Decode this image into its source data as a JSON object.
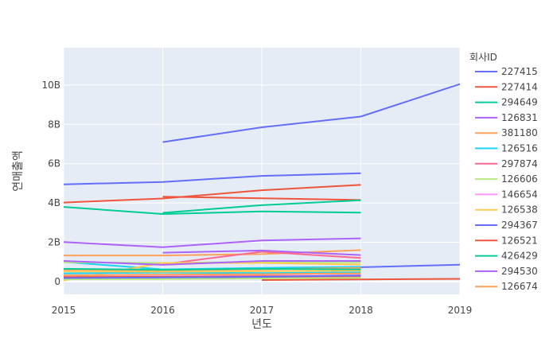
{
  "chart_data": {
    "type": "line",
    "xlabel": "년도",
    "ylabel": "연매출액",
    "legend_title": "회사ID",
    "legend_placement": "right",
    "grid": true,
    "xlim": [
      2015,
      2019
    ],
    "ylim": [
      -650000000,
      11900000000
    ],
    "x_ticks": [
      2015,
      2016,
      2017,
      2018,
      2019
    ],
    "y_ticks": [
      {
        "value": 0,
        "label": "0"
      },
      {
        "value": 2000000000,
        "label": "2B"
      },
      {
        "value": 4000000000,
        "label": "4B"
      },
      {
        "value": 6000000000,
        "label": "6B"
      },
      {
        "value": 8000000000,
        "label": "8B"
      },
      {
        "value": 10000000000,
        "label": "10B"
      }
    ],
    "series": [
      {
        "name": "227415",
        "color": "#636efa",
        "points": [
          [
            2016,
            7100000000
          ],
          [
            2017,
            7850000000
          ],
          [
            2018,
            8400000000
          ],
          [
            2019,
            10050000000
          ]
        ]
      },
      {
        "name": "227414",
        "color": "#ef553b",
        "points": [
          [
            2015,
            4020000000
          ],
          [
            2016,
            4230000000
          ],
          [
            2017,
            4650000000
          ],
          [
            2018,
            4920000000
          ]
        ]
      },
      {
        "name": "294649",
        "color": "#00cc96",
        "points": [
          [
            2015,
            3800000000
          ],
          [
            2016,
            3440000000
          ],
          [
            2017,
            3570000000
          ],
          [
            2018,
            3510000000
          ]
        ]
      },
      {
        "name": "126831",
        "color": "#ab63fa",
        "points": [
          [
            2015,
            2010000000
          ],
          [
            2016,
            1750000000
          ],
          [
            2017,
            2090000000
          ],
          [
            2018,
            2200000000
          ]
        ]
      },
      {
        "name": "381180",
        "color": "#ffa15a",
        "points": [
          [
            2015,
            1330000000
          ],
          [
            2016,
            1330000000
          ],
          [
            2017,
            1400000000
          ],
          [
            2018,
            1600000000
          ]
        ]
      },
      {
        "name": "126516",
        "color": "#19d3f3",
        "points": [
          [
            2015,
            1000000000
          ],
          [
            2016,
            620000000
          ],
          [
            2017,
            700000000
          ],
          [
            2018,
            750000000
          ]
        ]
      },
      {
        "name": "297874",
        "color": "#ff6692",
        "points": [
          [
            2016,
            880000000
          ],
          [
            2017,
            1520000000
          ],
          [
            2018,
            1200000000
          ]
        ]
      },
      {
        "name": "126606",
        "color": "#b6e880",
        "points": [
          [
            2015,
            980000000
          ],
          [
            2016,
            950000000
          ],
          [
            2017,
            1000000000
          ],
          [
            2018,
            980000000
          ]
        ]
      },
      {
        "name": "146654",
        "color": "#ff97ff",
        "points": [
          [
            2015,
            250000000
          ],
          [
            2016,
            300000000
          ],
          [
            2017,
            350000000
          ],
          [
            2018,
            400000000
          ]
        ]
      },
      {
        "name": "126538",
        "color": "#fecb52",
        "points": [
          [
            2015,
            60000000
          ],
          [
            2016,
            950000000
          ],
          [
            2017,
            950000000
          ],
          [
            2018,
            870000000
          ]
        ]
      },
      {
        "name": "294367",
        "color": "#636efa",
        "points": [
          [
            2015,
            4950000000
          ],
          [
            2016,
            5070000000
          ],
          [
            2017,
            5380000000
          ],
          [
            2018,
            5510000000
          ]
        ]
      },
      {
        "name": "126521",
        "color": "#ef553b",
        "points": [
          [
            2016,
            4320000000
          ],
          [
            2017,
            4240000000
          ],
          [
            2018,
            4150000000
          ]
        ]
      },
      {
        "name": "426429",
        "color": "#00cc96",
        "points": [
          [
            2016,
            3500000000
          ],
          [
            2017,
            3890000000
          ],
          [
            2018,
            4140000000
          ]
        ]
      },
      {
        "name": "294530",
        "color": "#ab63fa",
        "points": [
          [
            2016,
            1470000000
          ],
          [
            2017,
            1580000000
          ],
          [
            2018,
            1350000000
          ]
        ]
      },
      {
        "name": "126674",
        "color": "#ffa15a",
        "points": [
          [
            2015,
            600000000
          ],
          [
            2016,
            580000000
          ],
          [
            2017,
            620000000
          ],
          [
            2018,
            700000000
          ]
        ]
      },
      {
        "name": "",
        "color": "#636efa",
        "points": [
          [
            2018,
            730000000
          ],
          [
            2019,
            860000000
          ]
        ]
      },
      {
        "name": "",
        "color": "#ef553b",
        "points": [
          [
            2017,
            80000000
          ],
          [
            2018,
            110000000
          ],
          [
            2019,
            140000000
          ]
        ]
      },
      {
        "name": "",
        "color": "#ab63fa",
        "points": [
          [
            2015,
            1050000000
          ],
          [
            2016,
            850000000
          ],
          [
            2017,
            1050000000
          ],
          [
            2018,
            1050000000
          ]
        ]
      },
      {
        "name": "",
        "color": "#19d3f3",
        "points": [
          [
            2015,
            420000000
          ],
          [
            2016,
            460000000
          ],
          [
            2017,
            430000000
          ],
          [
            2018,
            470000000
          ]
        ]
      },
      {
        "name": "",
        "color": "#ff6692",
        "points": [
          [
            2015,
            150000000
          ],
          [
            2016,
            200000000
          ],
          [
            2017,
            230000000
          ],
          [
            2018,
            260000000
          ]
        ]
      },
      {
        "name": "",
        "color": "#b6e880",
        "points": [
          [
            2015,
            120000000
          ],
          [
            2016,
            130000000
          ],
          [
            2017,
            160000000
          ],
          [
            2018,
            190000000
          ]
        ]
      },
      {
        "name": "",
        "color": "#fecb52",
        "points": [
          [
            2015,
            520000000
          ],
          [
            2016,
            500000000
          ],
          [
            2017,
            530000000
          ],
          [
            2018,
            560000000
          ]
        ]
      },
      {
        "name": "",
        "color": "#00cc96",
        "points": [
          [
            2015,
            650000000
          ],
          [
            2016,
            600000000
          ],
          [
            2017,
            650000000
          ],
          [
            2018,
            620000000
          ]
        ]
      },
      {
        "name": "",
        "color": "#ffa15a",
        "points": [
          [
            2015,
            320000000
          ],
          [
            2016,
            350000000
          ],
          [
            2017,
            380000000
          ],
          [
            2018,
            420000000
          ]
        ]
      },
      {
        "name": "",
        "color": "#ef553b",
        "points": [
          [
            2015,
            230000000
          ],
          [
            2016,
            240000000
          ],
          [
            2017,
            270000000
          ],
          [
            2018,
            290000000
          ]
        ]
      },
      {
        "name": "",
        "color": "#636efa",
        "points": [
          [
            2015,
            180000000
          ],
          [
            2016,
            210000000
          ],
          [
            2017,
            240000000
          ],
          [
            2018,
            310000000
          ]
        ]
      }
    ]
  }
}
